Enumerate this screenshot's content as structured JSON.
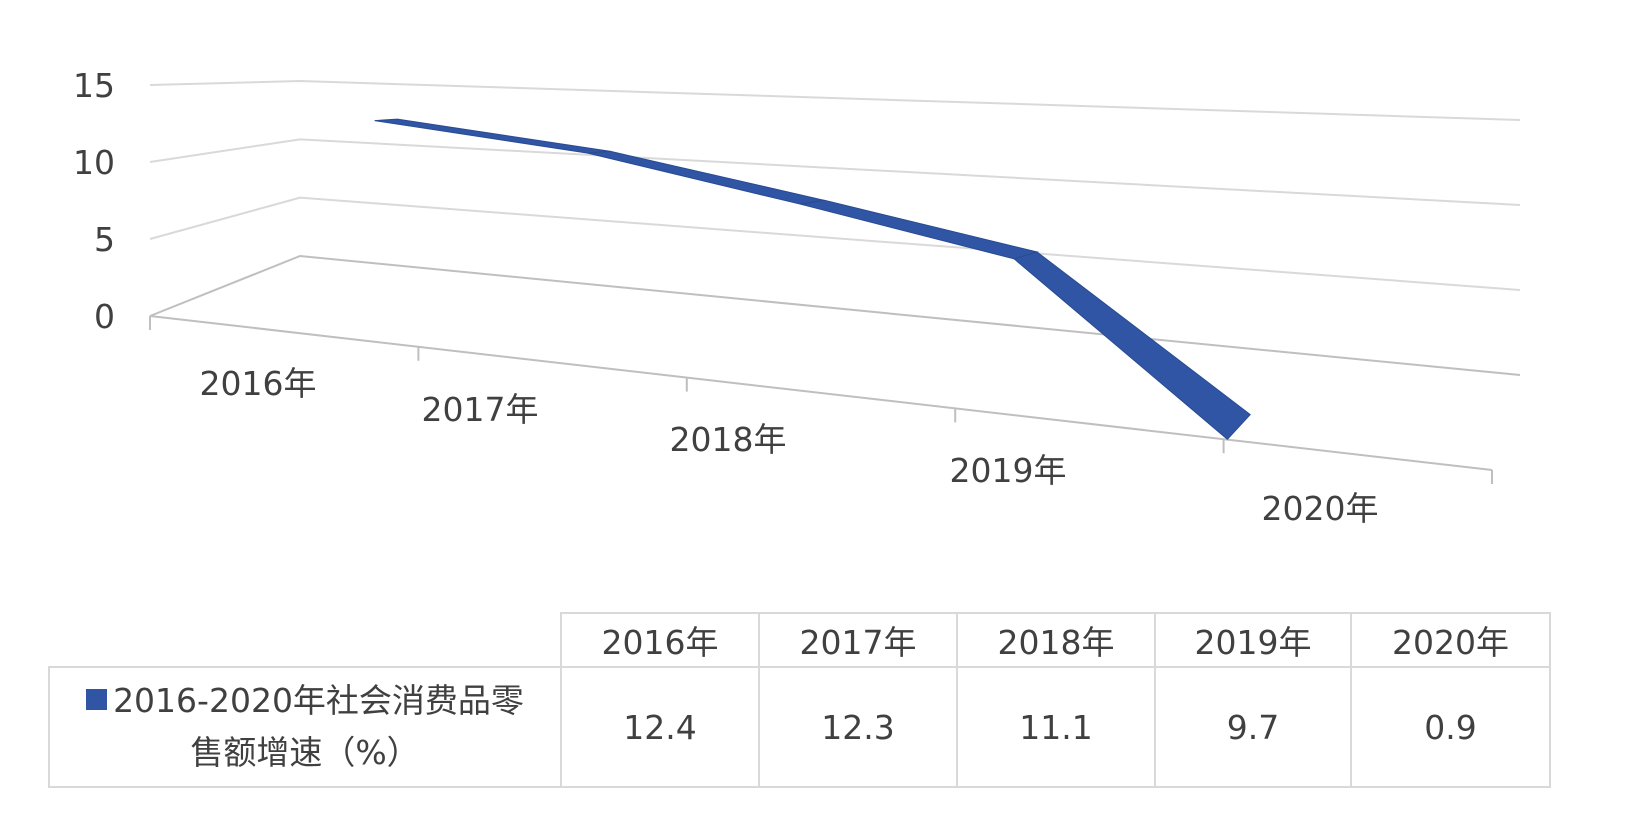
{
  "colors": {
    "series": "#2f55a4",
    "grid": "#d9d9d9",
    "text": "#404040"
  },
  "chart_data": {
    "type": "line",
    "style": "3d-ribbon",
    "categories": [
      "2016年",
      "2017年",
      "2018年",
      "2019年",
      "2020年"
    ],
    "series": [
      {
        "name_line1": "2016-2020年社会消费品零",
        "name_line2": "售额增速（%）",
        "values": [
          12.4,
          12.3,
          11.1,
          9.7,
          0.9
        ],
        "value_labels": [
          "12.4",
          "12.3",
          "11.1",
          "9.7",
          "0.9"
        ]
      }
    ],
    "yticks": [
      "0",
      "5",
      "10",
      "15"
    ],
    "ylim": [
      0,
      15
    ],
    "grid": true,
    "data_table": true
  }
}
